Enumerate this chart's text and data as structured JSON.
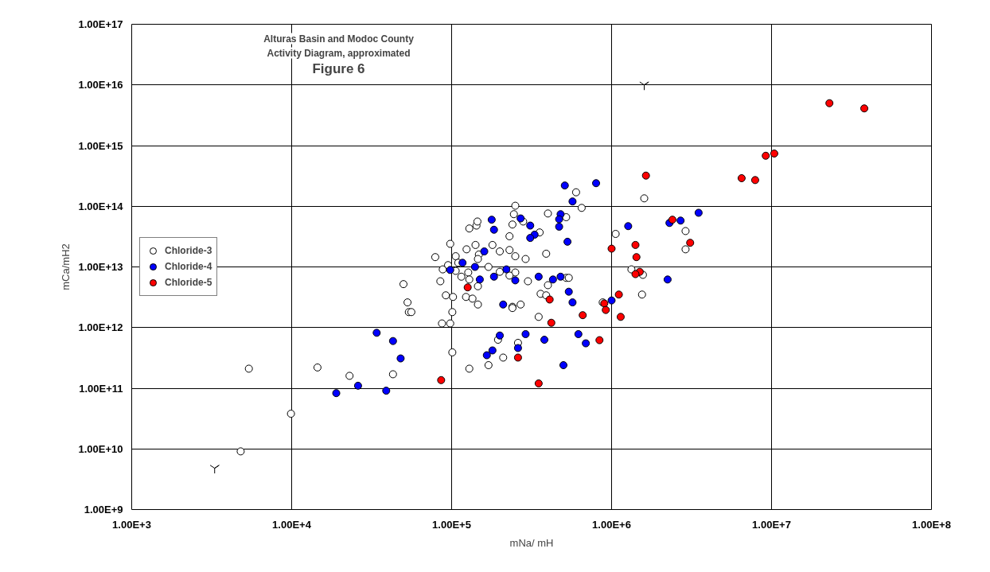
{
  "chart_data": {
    "type": "scatter",
    "title": "Alturas Basin and Modoc County\nActivity Diagram, approximated",
    "subtitle": "Figure 6",
    "xlabel": "mNa/ mH",
    "ylabel": "mCa/mH2",
    "xlim": [
      1000,
      100000000
    ],
    "ylim": [
      1000000000,
      100000000000000000
    ],
    "xticks": [
      {
        "value": 1000,
        "label": "1.00E+3"
      },
      {
        "value": 10000,
        "label": "1.00E+4"
      },
      {
        "value": 100000,
        "label": "1.00E+5"
      },
      {
        "value": 1000000,
        "label": "1.00E+6"
      },
      {
        "value": 10000000,
        "label": "1.00E+7"
      },
      {
        "value": 100000000,
        "label": "1.00E+8"
      }
    ],
    "yticks": [
      {
        "value": 1000000000,
        "label": "1.00E+9"
      },
      {
        "value": 10000000000,
        "label": "1.00E+10"
      },
      {
        "value": 100000000000,
        "label": "1.00E+11"
      },
      {
        "value": 1000000000000,
        "label": "1.00E+12"
      },
      {
        "value": 10000000000000,
        "label": "1.00E+13"
      },
      {
        "value": 100000000000000,
        "label": "1.00E+14"
      },
      {
        "value": 1000000000000000,
        "label": "1.00E+15"
      },
      {
        "value": 10000000000000000,
        "label": "1.00E+16"
      },
      {
        "value": 100000000000000000,
        "label": "1.00E+17"
      }
    ],
    "log": "xy",
    "grid": true,
    "legend": "left",
    "marker": "circle",
    "series": [
      {
        "name": "Chloride-3",
        "color": "#ffffff",
        "x": [
          1600000.0,
          2900000.0,
          2900000.0,
          1570000.0,
          1550000.0,
          600000.0,
          650000.0,
          250000.0,
          400000.0,
          520000.0,
          245000.0,
          280000.0,
          240000.0,
          355000.0,
          230000.0,
          1060000.0,
          1330000.0,
          880000.0,
          360000.0,
          390000.0,
          400000.0,
          520000.0,
          540000.0,
          300000.0,
          180000.0,
          200000.0,
          230000.0,
          250000.0,
          290000.0,
          390000.0,
          170000.0,
          200000.0,
          250000.0,
          230000.0,
          270000.0,
          240000.0,
          146000.0,
          146000.0,
          79000.0,
          50000.0,
          85000.0,
          53000.0,
          98000.0,
          106000.0,
          110000.0,
          88000.0,
          95000.0,
          106000.0,
          115000.0,
          127000.0,
          129000.0,
          92000.0,
          102000.0,
          123000.0,
          135000.0,
          129000.0,
          143000.0,
          145000.0,
          141000.0,
          124000.0,
          148000.0,
          146000.0,
          54000.0,
          56000.0,
          101000.0,
          87000.0,
          98000.0,
          23000.0,
          43000.0,
          101000.0,
          195000.0,
          210000.0,
          170000.0,
          129000.0,
          240000.0,
          260000.0,
          350000.0,
          5400.0,
          14500.0,
          9900.0,
          4800.0
        ],
        "values": [
          135000000000000.0,
          39000000000000.0,
          19500000000000.0,
          7400000000000.0,
          3500000000000.0,
          170000000000000.0,
          94000000000000.0,
          102000000000000.0,
          76000000000000.0,
          66000000000000.0,
          74000000000000.0,
          56000000000000.0,
          50000000000000.0,
          37000000000000.0,
          32000000000000.0,
          35000000000000.0,
          9100000000000.0,
          2600000000000.0,
          3600000000000.0,
          3400000000000.0,
          5000000000000.0,
          6600000000000.0,
          6600000000000.0,
          5800000000000.0,
          23000000000000.0,
          18000000000000.0,
          19000000000000.0,
          15000000000000.0,
          13500000000000.0,
          16500000000000.0,
          10000000000000.0,
          8300000000000.0,
          8100000000000.0,
          7200000000000.0,
          2400000000000.0,
          2200000000000.0,
          2400000000000.0,
          4800000000000.0,
          14500000000000.0,
          5200000000000.0,
          5800000000000.0,
          2600000000000.0,
          24000000000000.0,
          15000000000000.0,
          11700000000000.0,
          9100000000000.0,
          10700000000000.0,
          8600000000000.0,
          6900000000000.0,
          8100000000000.0,
          6200000000000.0,
          3400000000000.0,
          3200000000000.0,
          3200000000000.0,
          3000000000000.0,
          43000000000000.0,
          48000000000000.0,
          56000000000000.0,
          23000000000000.0,
          19500000000000.0,
          16000000000000.0,
          13500000000000.0,
          1800000000000.0,
          1800000000000.0,
          1800000000000.0,
          1170000000000.0,
          1170000000000.0,
          160000000000.0,
          170000000000.0,
          390000000000.0,
          630000000000.0,
          320000000000.0,
          240000000000.0,
          210000000000.0,
          2100000000000.0,
          560000000000.0,
          1500000000000.0,
          210000000000.0,
          220000000000.0,
          38000000000.0,
          9100000000.0
        ]
      },
      {
        "name": "Chloride-4",
        "color": "#0000ff",
        "x": [
          3500000.0,
          2300000.0,
          2700000.0,
          2240000.0,
          800000.0,
          510000.0,
          570000.0,
          480000.0,
          470000.0,
          470000.0,
          178000.0,
          184000.0,
          270000.0,
          310000.0,
          330000.0,
          310000.0,
          530000.0,
          1270000.0,
          1000000.0,
          570000.0,
          540000.0,
          480000.0,
          430000.0,
          350000.0,
          250000.0,
          220000.0,
          184000.0,
          150000.0,
          160000.0,
          140000.0,
          210000.0,
          117000.0,
          98000.0,
          34000.0,
          43000.0,
          48000.0,
          26000.0,
          39000.0,
          200000.0,
          180000.0,
          166000.0,
          290000.0,
          260000.0,
          380000.0,
          620000.0,
          690000.0,
          500000.0,
          19000.0
        ],
        "values": [
          78000000000000.0,
          53000000000000.0,
          58000000000000.0,
          6200000000000.0,
          240000000000000.0,
          220000000000000.0,
          120000000000000.0,
          74000000000000.0,
          61000000000000.0,
          46000000000000.0,
          60000000000000.0,
          41000000000000.0,
          63000000000000.0,
          48000000000000.0,
          34000000000000.0,
          30000000000000.0,
          26000000000000.0,
          47000000000000.0,
          2800000000000.0,
          2600000000000.0,
          3900000000000.0,
          6900000000000.0,
          6200000000000.0,
          6900000000000.0,
          6000000000000.0,
          9100000000000.0,
          6900000000000.0,
          6200000000000.0,
          18000000000000.0,
          10000000000000.0,
          2400000000000.0,
          11700000000000.0,
          8900000000000.0,
          820000000000.0,
          600000000000.0,
          310000000000.0,
          110000000000.0,
          91000000000.0,
          740000000000.0,
          420000000000.0,
          350000000000.0,
          780000000000.0,
          460000000000.0,
          630000000000.0,
          780000000000.0,
          550000000000.0,
          240000000000.0,
          83000000000.0
        ]
      },
      {
        "name": "Chloride-5",
        "color": "#ff0000",
        "x": [
          23000000.0,
          38000000.0,
          9200000.0,
          10400000.0,
          6500000.0,
          7900000.0,
          1640000.0,
          2400000.0,
          3100000.0,
          1410000.0,
          1430000.0,
          1500000.0,
          1410000.0,
          1000000.0,
          1110000.0,
          900000.0,
          920000.0,
          410000.0,
          126000.0,
          86000.0,
          260000.0,
          420000.0,
          350000.0,
          840000.0,
          660000.0,
          1140000.0
        ],
        "values": [
          5000000000000000.0,
          4100000000000000.0,
          680000000000000.0,
          740000000000000.0,
          290000000000000.0,
          270000000000000.0,
          320000000000000.0,
          60000000000000.0,
          25000000000000.0,
          23000000000000.0,
          14500000000000.0,
          8300000000000.0,
          7600000000000.0,
          20000000000000.0,
          3500000000000.0,
          2500000000000.0,
          1950000000000.0,
          2900000000000.0,
          4600000000000.0,
          136000000000.0,
          320000000000.0,
          1200000000000.0,
          120000000000.0,
          620000000000.0,
          1600000000000.0,
          1500000000000.0
        ]
      },
      {
        "color": "#000000",
        "marker": "cross",
        "x": [
          1600000.0,
          3300.0
        ],
        "values": [
          1e+16,
          4800000000.0
        ]
      }
    ]
  }
}
